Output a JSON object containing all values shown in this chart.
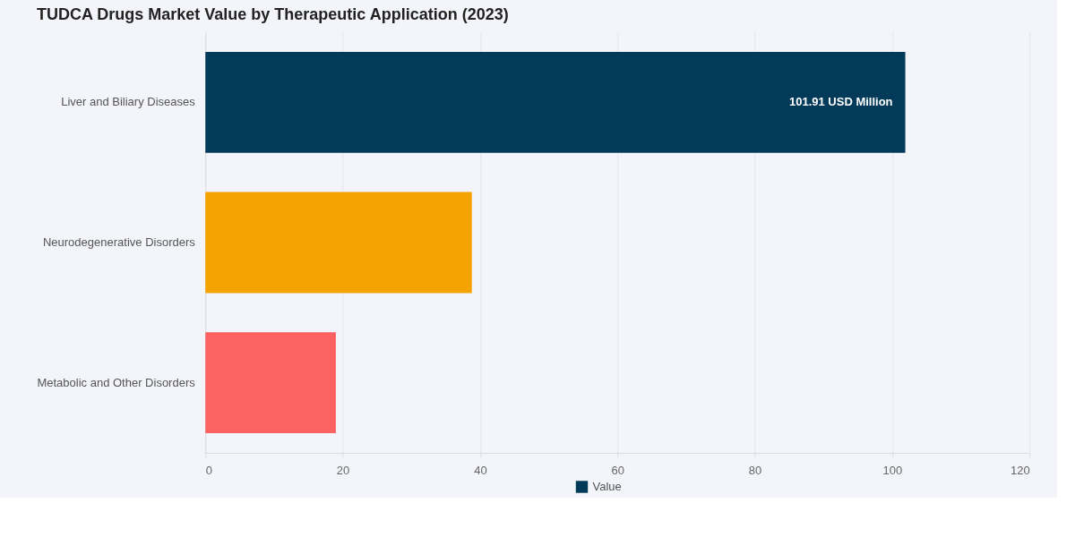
{
  "chart_data": {
    "type": "bar",
    "orientation": "horizontal",
    "title": "TUDCA Drugs Market Value by Therapeutic Application (2023)",
    "categories": [
      "Liver and Biliary Diseases",
      "Neurodegenerative Disorders",
      "Metabolic and Other Disorders"
    ],
    "series": [
      {
        "name": "Value",
        "colors": [
          "#023a5a",
          "#f5a300",
          "#fd6262"
        ],
        "values": [
          101.91,
          38.8,
          19.0
        ]
      }
    ],
    "value_labels": [
      "101.91 USD Million",
      null,
      null
    ],
    "xlim": [
      0,
      120
    ],
    "xticks": [
      0,
      20,
      40,
      60,
      80,
      100,
      120
    ],
    "grid": "x",
    "legend": "bottom"
  }
}
